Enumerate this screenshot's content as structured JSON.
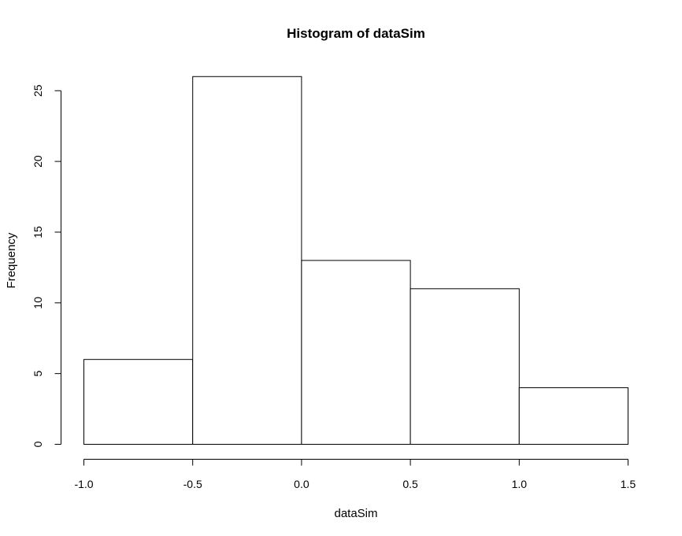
{
  "chart_data": {
    "type": "bar",
    "title": "Histogram of dataSim",
    "xlabel": "dataSim",
    "ylabel": "Frequency",
    "bins": [
      {
        "start": -1.0,
        "end": -0.5,
        "count": 6
      },
      {
        "start": -0.5,
        "end": 0.0,
        "count": 26
      },
      {
        "start": 0.0,
        "end": 0.5,
        "count": 13
      },
      {
        "start": 0.5,
        "end": 1.0,
        "count": 11
      },
      {
        "start": 1.0,
        "end": 1.5,
        "count": 4
      }
    ],
    "xlim": [
      -1.0,
      1.5
    ],
    "ylim": [
      0,
      26
    ],
    "x_ticks": [
      "-1.0",
      "-0.5",
      "0.0",
      "0.5",
      "1.0",
      "1.5"
    ],
    "y_ticks": [
      "0",
      "5",
      "10",
      "15",
      "20",
      "25"
    ],
    "grid": false,
    "colors": {
      "bar_fill": "#ffffff",
      "bar_stroke": "#000000"
    }
  }
}
